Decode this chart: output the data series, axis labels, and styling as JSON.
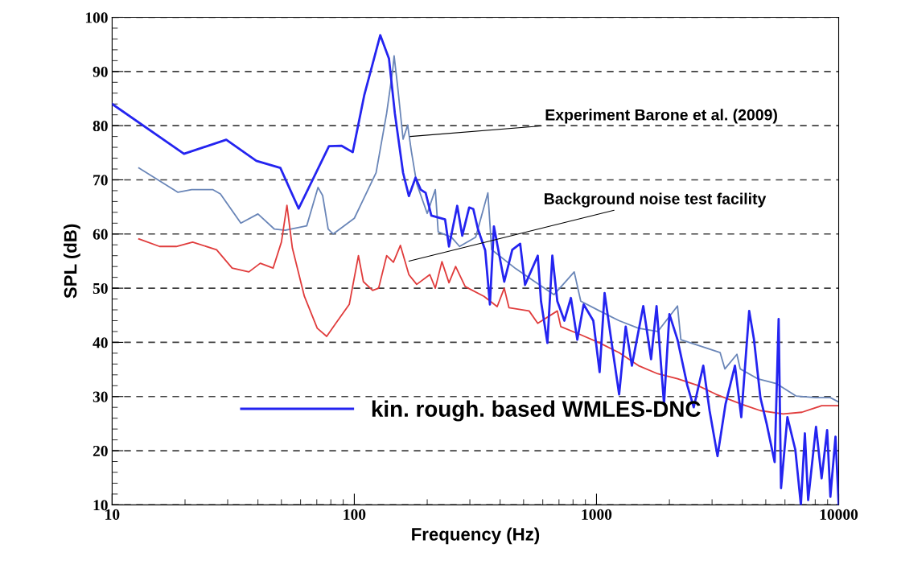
{
  "chart_data": {
    "type": "line",
    "xlabel": "Frequency (Hz)",
    "ylabel": "SPL (dB)",
    "log": "x",
    "xlim": [
      10,
      10000
    ],
    "xticks": [
      10,
      100,
      1000,
      10000
    ],
    "ylim": [
      10,
      100
    ],
    "yticks": [
      10,
      20,
      30,
      40,
      50,
      60,
      70,
      80,
      90,
      100
    ],
    "grid": "y",
    "legend": "bottom left",
    "marker": "none",
    "line_style": "solid",
    "series": [
      {
        "color": "#6a86b8",
        "x": [
          12.9,
          18.7,
          21.3,
          26,
          28,
          34,
          40,
          46.8,
          51.8,
          63.6,
          70.8,
          74,
          78,
          81.8,
          100,
          123,
          136,
          144,
          146,
          151,
          159,
          166,
          172,
          181,
          200,
          216,
          222,
          252,
          272,
          317,
          356,
          369,
          464,
          556,
          668,
          809,
          861,
          1030,
          1240,
          1490,
          1790,
          2160,
          2230,
          2690,
          3240,
          3390,
          3800,
          3920,
          4620,
          5520,
          6660,
          8060,
          9240,
          10000
        ],
        "values": [
          72.2,
          67.7,
          68.2,
          68.2,
          67.4,
          62,
          63.7,
          60.9,
          60.7,
          61.5,
          68.6,
          67.1,
          60.9,
          60,
          62.9,
          71.3,
          82.3,
          90.2,
          92.9,
          87.2,
          77.5,
          80.1,
          75.3,
          69.3,
          63.8,
          68.2,
          60.4,
          59.4,
          57.7,
          59.4,
          67.6,
          57.1,
          53.6,
          51.2,
          48.8,
          53,
          47.6,
          45.8,
          44,
          42.6,
          42,
          46.7,
          40.5,
          39.3,
          38.1,
          35.1,
          37.8,
          35.1,
          33.3,
          32.4,
          30.1,
          29.8,
          29.8,
          29
        ]
      },
      {
        "color": "#e03c3c",
        "x": [
          12.9,
          15.7,
          18.4,
          21.5,
          27,
          31.3,
          36.7,
          40.9,
          46.2,
          50,
          52.7,
          55.5,
          62.2,
          70.3,
          76.9,
          84.1,
          95.3,
          104,
          109,
          119,
          126,
          136,
          145,
          155,
          168,
          181,
          205,
          216,
          230,
          246,
          262,
          287,
          343,
          389,
          416,
          435,
          527,
          572,
          689,
          712,
          861,
          1030,
          1240,
          1490,
          1790,
          2160,
          2600,
          3120,
          3960,
          4750,
          5900,
          7050,
          8500,
          10000
        ],
        "values": [
          59.1,
          57.7,
          57.7,
          58.5,
          57.1,
          53.7,
          53,
          54.6,
          53.7,
          58.5,
          65.3,
          57.4,
          48.5,
          42.6,
          41.1,
          43.6,
          47,
          56,
          51.2,
          49.6,
          50,
          56,
          54.8,
          57.9,
          52.5,
          50.7,
          52.5,
          50,
          54.9,
          51,
          54,
          50.3,
          48.5,
          46.6,
          50,
          46.4,
          45.8,
          43.5,
          45.8,
          42.9,
          41.4,
          39.9,
          38.1,
          35.7,
          34.2,
          33.3,
          32.1,
          30.4,
          28.6,
          27.4,
          26.8,
          27.1,
          28.3,
          28.3
        ]
      },
      {
        "name": "kin. rough. based WMLES-DNC",
        "color": "#2424f0",
        "x": [
          10,
          19.8,
          29.6,
          39.4,
          49.5,
          58.9,
          78.6,
          88.4,
          98.5,
          110,
          119,
          128,
          139,
          147,
          159,
          168,
          179,
          188,
          197,
          208,
          237,
          246,
          266,
          279,
          298,
          310,
          324,
          347,
          363,
          377,
          416,
          449,
          484,
          507,
          572,
          590,
          627,
          657,
          689,
          737,
          784,
          833,
          885,
          970,
          1030,
          1080,
          1160,
          1240,
          1320,
          1400,
          1560,
          1680,
          1770,
          1900,
          2000,
          2160,
          2370,
          2520,
          2760,
          2930,
          3160,
          3410,
          3730,
          3960,
          4270,
          4470,
          4750,
          5040,
          5440,
          5650,
          5780,
          6140,
          6620,
          6980,
          7250,
          7480,
          8060,
          8500,
          8960,
          9240,
          9700,
          10000
        ],
        "values": [
          84,
          74.8,
          77.4,
          73.5,
          72.2,
          64.7,
          76.2,
          76.3,
          75.1,
          85.7,
          91.4,
          96.7,
          92.4,
          82.3,
          71.3,
          67,
          70.4,
          68.2,
          67.6,
          63.4,
          62.7,
          57.7,
          65.2,
          59.7,
          64.9,
          64.6,
          60.9,
          57,
          47,
          61.4,
          51.2,
          57.1,
          58.2,
          50.6,
          56,
          47.6,
          39.9,
          56,
          47.6,
          44,
          48.2,
          40.5,
          47,
          44,
          34.5,
          49.1,
          39.3,
          30.4,
          42.9,
          35.7,
          46.7,
          36.9,
          46.7,
          28.6,
          45.2,
          40.5,
          32.1,
          28,
          35.7,
          27.4,
          19,
          28.6,
          35.7,
          26.2,
          45.8,
          40.5,
          29.8,
          25,
          17.9,
          44.3,
          13.1,
          26.2,
          20.2,
          10,
          23.2,
          10.9,
          24.4,
          14.9,
          23.8,
          11.5,
          22.6,
          10
        ]
      }
    ],
    "annotations": [
      {
        "text": "Experiment Barone et al. (2009)",
        "x": 170,
        "y": 78
      },
      {
        "text": "Background noise test facility",
        "x": 168,
        "y": 55
      }
    ]
  }
}
